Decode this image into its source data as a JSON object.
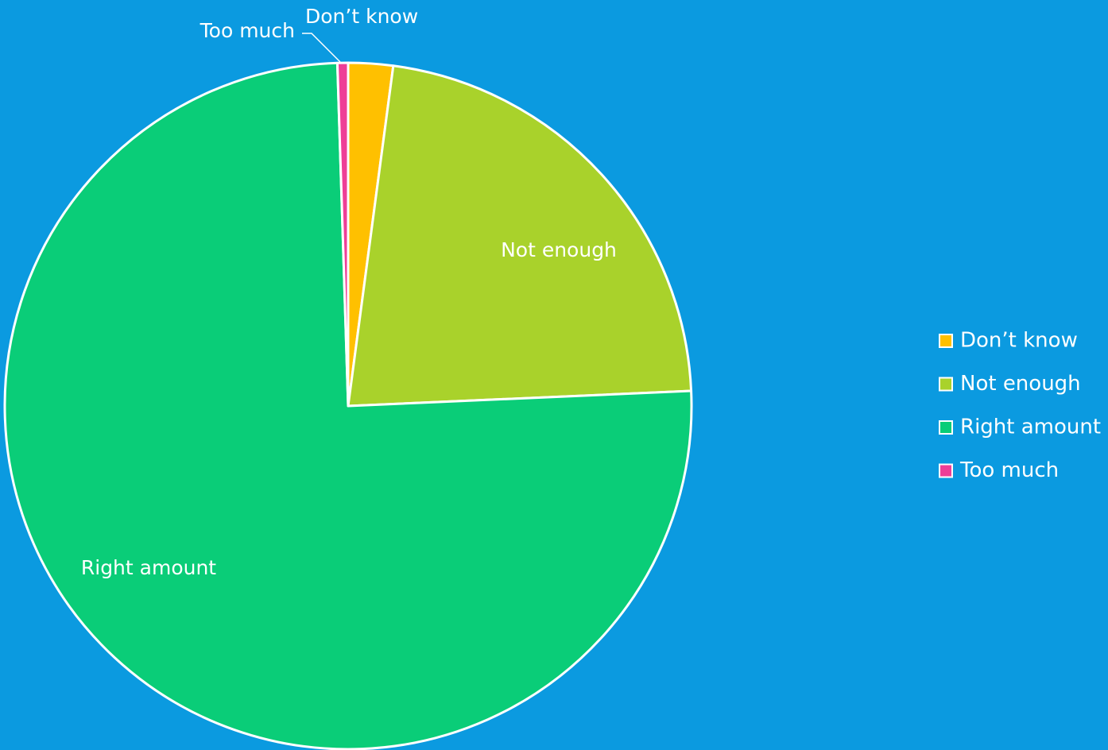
{
  "chart_data": {
    "type": "pie",
    "title": "",
    "slices": [
      {
        "label": "Don’t know",
        "value": 2.1,
        "color": "#FFC000"
      },
      {
        "label": "Not enough",
        "value": 22.2,
        "color": "#A9D22B"
      },
      {
        "label": "Right amount",
        "value": 75.2,
        "color": "#0ACD78"
      },
      {
        "label": "Too much",
        "value": 0.5,
        "color": "#EE3E97"
      }
    ],
    "start_angle_deg": 0,
    "direction": "clockwise",
    "legend_position": "right"
  }
}
